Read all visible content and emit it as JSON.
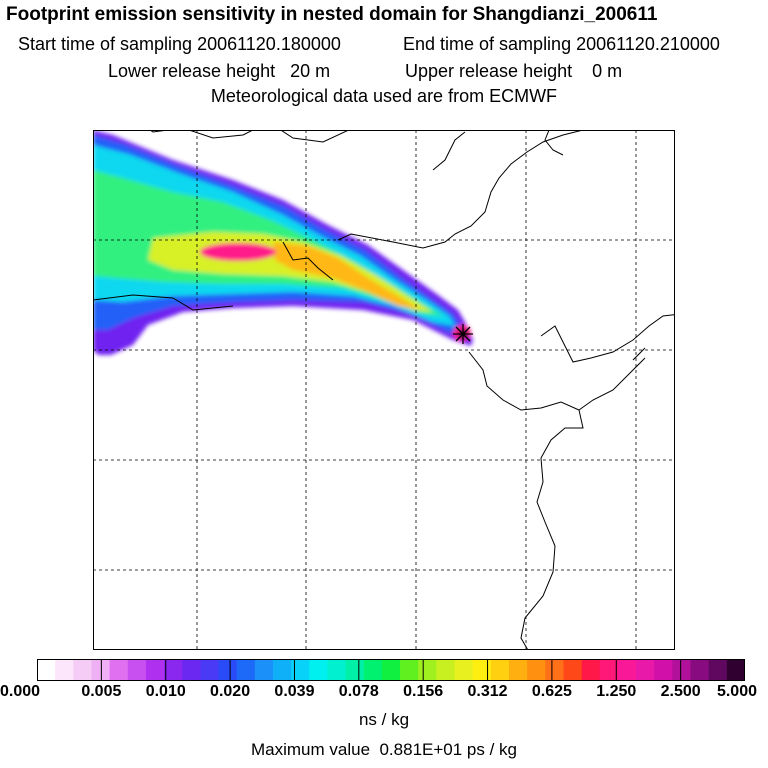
{
  "header": {
    "title": "Footprint emission sensitivity in nested domain for Shangdianzi_200611",
    "start_sampling": "Start time of sampling 20061120.180000",
    "end_sampling": "End time of sampling 20061120.210000",
    "lower_release": "Lower release height   20 m",
    "upper_release": "Upper release height    0 m",
    "met_data": "Meteorological data used are from ECMWF"
  },
  "colorbar": {
    "tick_labels": [
      "0.000",
      "0.005",
      "0.010",
      "0.020",
      "0.039",
      "0.078",
      "0.156",
      "0.312",
      "0.625",
      "1.250",
      "2.500",
      "5.000"
    ],
    "colors": [
      "#ffffff",
      "#fce6fc",
      "#f5ccf5",
      "#f0b0f5",
      "#e070f0",
      "#c850f0",
      "#b030f0",
      "#8a28f0",
      "#6a28f0",
      "#4a3af5",
      "#2a4cf8",
      "#1e6af8",
      "#1a90f8",
      "#10b0f8",
      "#08d2f8",
      "#00f0f0",
      "#00f0d0",
      "#00f0a8",
      "#00f070",
      "#10f040",
      "#60f020",
      "#a0f020",
      "#c8f020",
      "#e8f020",
      "#ffee10",
      "#ffd010",
      "#ffb010",
      "#ff9010",
      "#ff7018",
      "#ff4818",
      "#ff1848",
      "#ff1878",
      "#f81898",
      "#e818a8",
      "#d010a8",
      "#b0109a",
      "#880c80",
      "#600860",
      "#300030"
    ],
    "units": "ns / kg"
  },
  "footer": {
    "max_value": "Maximum value  0.881E+01 ps / kg"
  },
  "map": {
    "receptor": "Shangdianzi",
    "receptor_marker": "star",
    "plume_colors": {
      "outer": "#7020f0",
      "blue": "#2060f8",
      "cyan": "#10d8f0",
      "green": "#30f080",
      "yellow": "#d8f028",
      "orange": "#ffb818",
      "magenta": "#ff1a8a",
      "dark": "#500848"
    }
  }
}
